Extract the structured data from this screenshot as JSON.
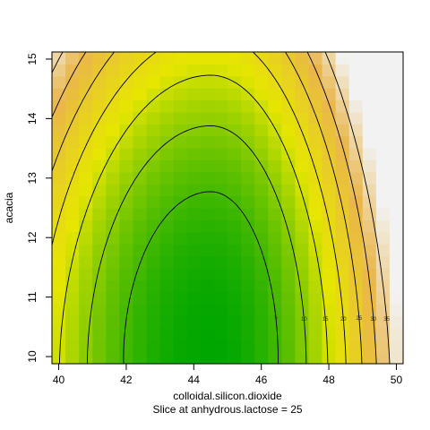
{
  "chart_data": {
    "type": "heatmap",
    "title": "",
    "xlabel": "colloidal.silicon.dioxide",
    "subtitle": "Slice at anhydrous.lactose = 25",
    "ylabel": "acacia",
    "xlim": [
      39.8,
      50.2
    ],
    "ylim": [
      9.88,
      15.12
    ],
    "x_ticks": [
      "40",
      "42",
      "44",
      "46",
      "48",
      "50"
    ],
    "y_ticks": [
      "10",
      "11",
      "12",
      "13",
      "14",
      "15"
    ],
    "surface": {
      "x_center": 44.5,
      "y_center": 10.1,
      "a_left": 0.75,
      "a_right": 1.25,
      "b": 0.7
    },
    "contour_levels": [
      "0",
      "5",
      "10",
      "15",
      "20",
      "25",
      "30",
      "35"
    ],
    "color_range": [
      0,
      40
    ],
    "colors": {
      "low": "#00a600",
      "mid": "#e6e600",
      "mid2": "#eab64a",
      "high": "#f2f2f2"
    },
    "grid": false,
    "legend": "none"
  }
}
